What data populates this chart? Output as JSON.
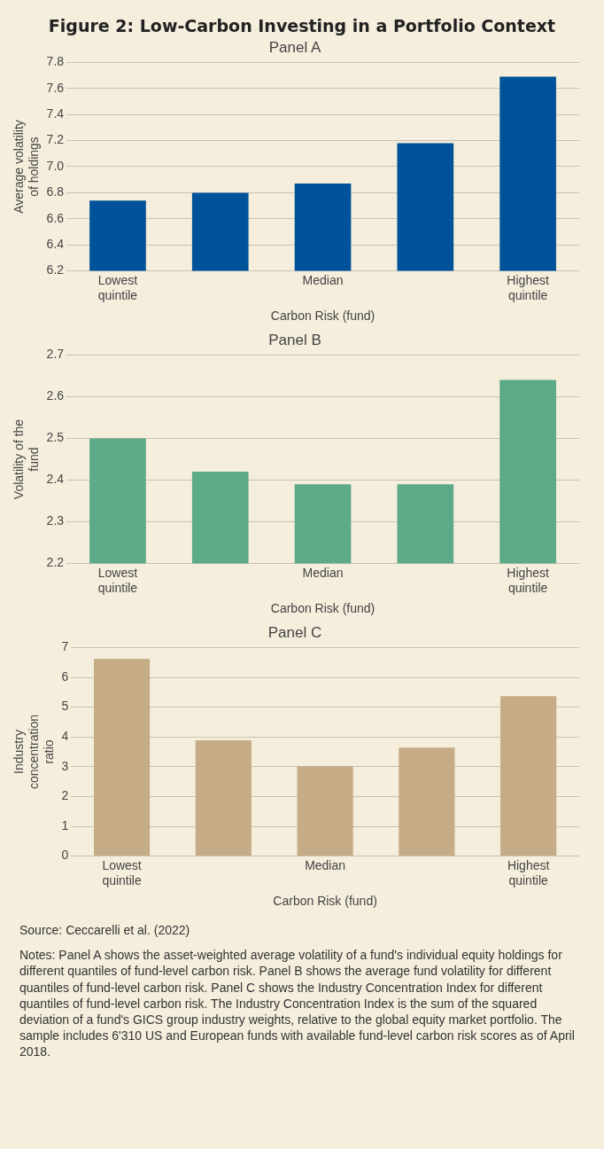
{
  "chart_data": [
    {
      "type": "bar",
      "title": "Figure 2: Low-Carbon Investing in a Portfolio Context",
      "subtitle": "Panel A",
      "xlabel": "Carbon Risk (fund)",
      "ylabel": "Average volatility of holdings",
      "categories": [
        "Lowest quintile",
        null,
        "Median",
        null,
        "Highest quintile"
      ],
      "series": [
        {
          "color": "#00539b",
          "values": [
            6.74,
            6.8,
            6.87,
            7.18,
            7.69
          ]
        }
      ],
      "ylim": [
        6.2,
        7.8
      ],
      "yticks": [
        6.2,
        6.4,
        6.6,
        6.8,
        {
          "value": 7,
          "label": "7.0"
        },
        7.2,
        7.4,
        7.6,
        7.8
      ],
      "grid": "y",
      "legend": false
    },
    {
      "type": "bar",
      "subtitle": "Panel B",
      "xlabel": "Carbon Risk (fund)",
      "ylabel": "Volatility of the fund",
      "categories": [
        "Lowest quintile",
        null,
        "Median",
        null,
        "Highest quintile"
      ],
      "series": [
        {
          "color": "#5daa88",
          "values": [
            2.5,
            2.42,
            2.39,
            2.39,
            2.64
          ]
        }
      ],
      "ylim": [
        2.2,
        2.7
      ],
      "yticks": [
        2.2,
        2.3,
        2.4,
        2.5,
        2.6,
        2.7
      ],
      "grid": "y",
      "legend": false
    },
    {
      "type": "bar",
      "subtitle": "Panel C",
      "xlabel": "Carbon Risk (fund)",
      "ylabel": "Industry concentration ratio",
      "categories": [
        "Lowest quintile",
        null,
        "Median",
        null,
        "Highest quintile"
      ],
      "series": [
        {
          "color": "#c5ab86",
          "values": [
            6.62,
            3.89,
            3.01,
            3.64,
            5.37
          ]
        }
      ],
      "ylim": [
        0,
        7
      ],
      "yticks": [
        0,
        1,
        2,
        3,
        4,
        5,
        6,
        7
      ],
      "grid": "y",
      "legend": false,
      "annotations": [
        "Source: Ceccarelli et al. (2022)",
        "Notes: Panel A shows the asset-weighted average volatility of a fund's individual equity holdings for different quantiles of fund-level carbon risk. Panel B shows the average fund volatility for different quantiles of fund-level carbon risk. Panel C shows the Industry Concentration Index for different quantiles of fund-level carbon risk. The Industry Concentration Index is the sum of the squared deviation of a fund's GICS group industry weights, relative to the global equity market portfolio. The sample includes 6'310 US and European funds with available fund-level carbon risk scores as of April 2018."
      ]
    }
  ]
}
